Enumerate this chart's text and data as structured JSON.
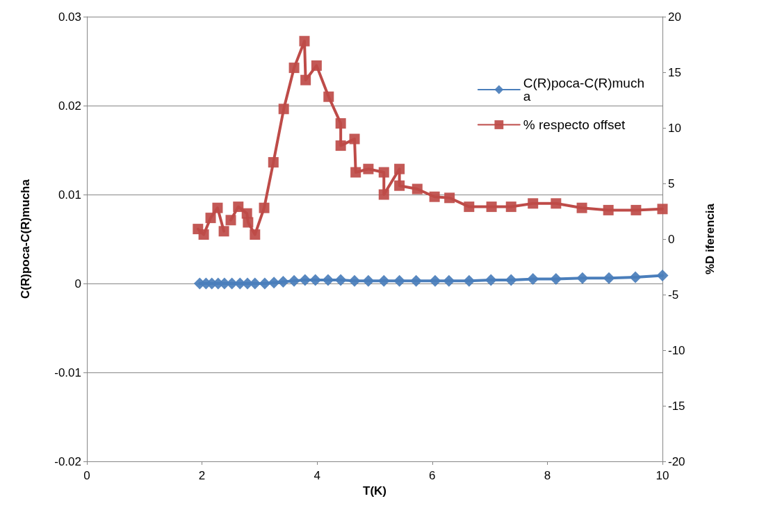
{
  "chart_data": {
    "type": "line",
    "xlabel": "T(K)",
    "ylabel": "C(R)poca-C(R)mucha",
    "y2label": "%D iferencia",
    "xlim": [
      0,
      10
    ],
    "xticks": [
      0,
      2,
      4,
      6,
      8,
      10
    ],
    "ylim": [
      -0.02,
      0.03
    ],
    "yticks": [
      -0.02,
      -0.01,
      0,
      0.01,
      0.02,
      0.03
    ],
    "y2lim": [
      -20,
      20
    ],
    "y2ticks": [
      -20,
      -15,
      -10,
      -5,
      0,
      5,
      10,
      15,
      20
    ],
    "grid": "y",
    "legend": "top right",
    "series": [
      {
        "name": "C(R)poca-C(R)mucha",
        "color": "#4a7ebb",
        "marker": "diamond",
        "x": [
          1.96,
          2.07,
          2.17,
          2.28,
          2.39,
          2.52,
          2.66,
          2.79,
          2.92,
          3.09,
          3.25,
          3.41,
          3.6,
          3.79,
          3.97,
          4.19,
          4.41,
          4.65,
          4.89,
          5.16,
          5.43,
          5.72,
          6.05,
          6.29,
          6.64,
          7.02,
          7.37,
          7.75,
          8.15,
          8.61,
          9.07,
          9.53,
          10
        ],
        "values": [
          0,
          0,
          0,
          0,
          0,
          0,
          0,
          0,
          0,
          0,
          0.0001,
          0.0002,
          0.0003,
          0.0004,
          0.0004,
          0.0004,
          0.0004,
          0.0003,
          0.0003,
          0.0003,
          0.0003,
          0.0003,
          0.0003,
          0.0003,
          0.0003,
          0.0004,
          0.0004,
          0.0005,
          0.0005,
          0.0006,
          0.0006,
          0.0007,
          0.0009
        ]
      },
      {
        "name": "% respecto offset",
        "color": "#be4b48",
        "marker": "square",
        "axis": "y2",
        "x": [
          1.93,
          2.03,
          2.15,
          2.27,
          2.38,
          2.44,
          2.5,
          2.63,
          2.78,
          2.8,
          2.92,
          3.08,
          3.24,
          3.42,
          3.6,
          3.78,
          3.8,
          3.99,
          4.2,
          4.41,
          4.41,
          4.65,
          4.67,
          4.89,
          5.16,
          5.16,
          5.43,
          5.43,
          5.74,
          6.04,
          6.3,
          6.64,
          7.03,
          7.37,
          7.75,
          8.15,
          8.6,
          9.06,
          9.54,
          10
        ],
        "values": [
          0.9,
          0.4,
          1.9,
          2.8,
          0.7,
          null,
          1.7,
          2.9,
          2.3,
          1.5,
          0.4,
          2.8,
          6.9,
          11.7,
          15.4,
          17.8,
          14.3,
          15.6,
          12.8,
          10.4,
          8.4,
          9,
          6,
          6.3,
          6,
          4,
          6.3,
          4.8,
          4.5,
          3.8,
          3.7,
          2.9,
          2.9,
          2.9,
          3.2,
          3.2,
          2.8,
          2.6,
          2.6,
          2.7
        ]
      }
    ]
  }
}
